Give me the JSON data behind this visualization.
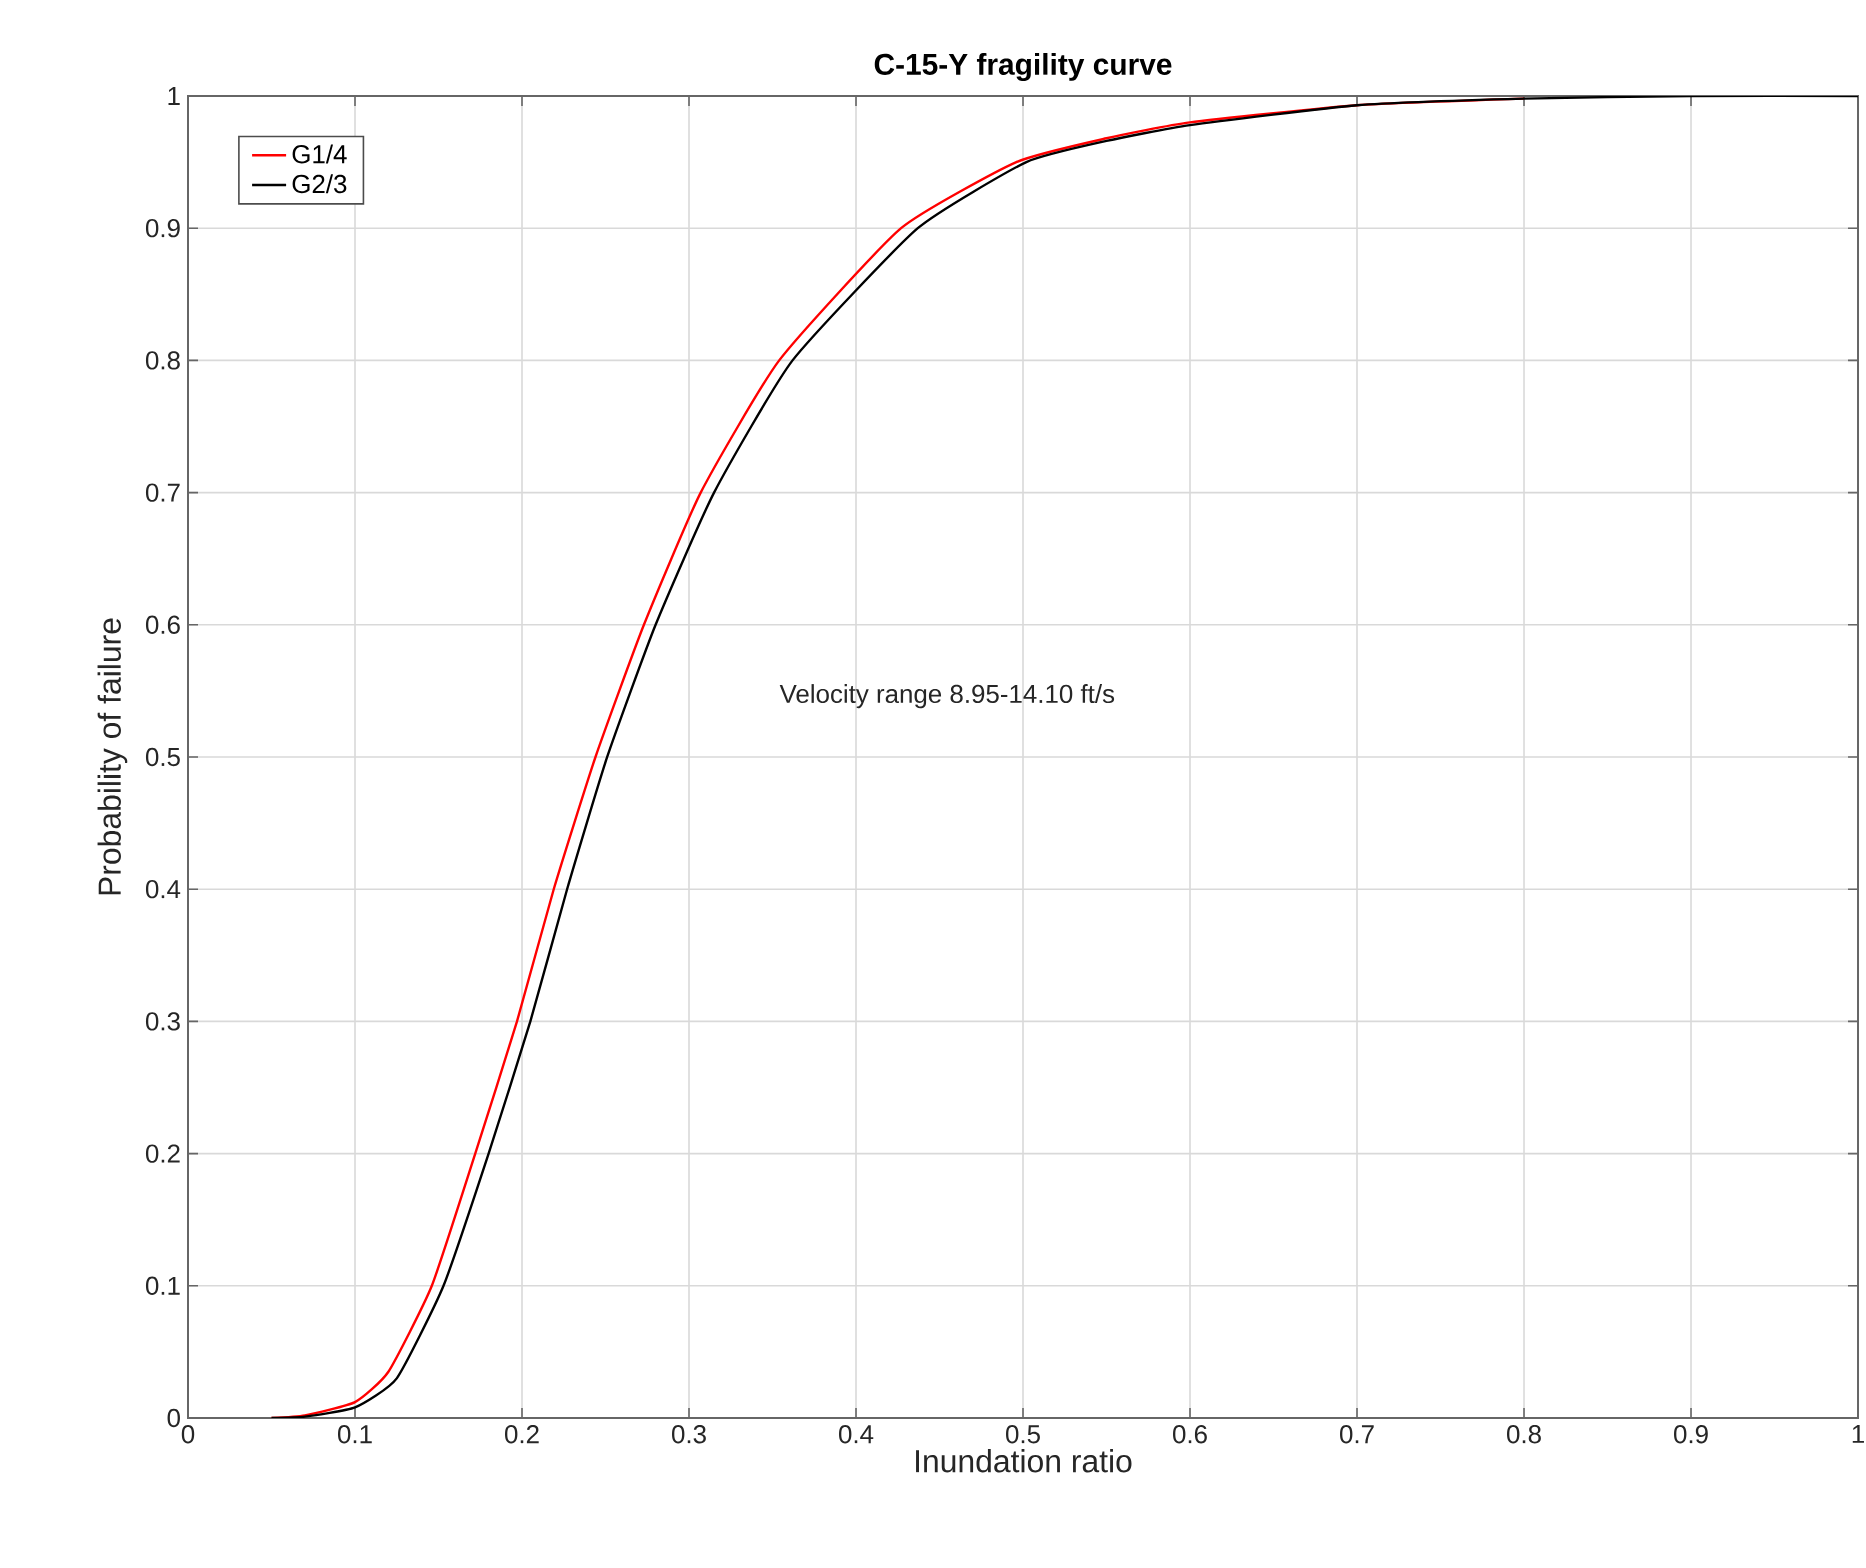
{
  "chart_data": {
    "type": "line",
    "title": "C-15-Y fragility curve",
    "xlabel": "Inundation ratio",
    "ylabel": "Probability of failure",
    "annotations": [
      "Velocity range 8.95-14.10 ft/s"
    ],
    "series": [
      {
        "name": "G1/4",
        "color": "#ff0000",
        "x": [
          0.05,
          0.07,
          0.1,
          0.12,
          0.146,
          0.172,
          0.197,
          0.219,
          0.244,
          0.273,
          0.307,
          0.354,
          0.427,
          0.496,
          0.55,
          0.6,
          0.7,
          0.8
        ],
        "values": [
          0,
          0.002,
          0.012,
          0.035,
          0.1,
          0.2,
          0.3,
          0.4,
          0.5,
          0.6,
          0.7,
          0.8,
          0.9,
          0.95,
          0.968,
          0.98,
          0.993,
          0.998
        ]
      },
      {
        "name": "G2/3",
        "color": "#000000",
        "x": [
          0.05,
          0.07,
          0.1,
          0.125,
          0.153,
          0.18,
          0.205,
          0.227,
          0.251,
          0.28,
          0.315,
          0.362,
          0.437,
          0.502,
          0.55,
          0.6,
          0.7,
          0.8,
          0.9,
          1.0
        ],
        "values": [
          0,
          0.001,
          0.008,
          0.03,
          0.1,
          0.2,
          0.3,
          0.4,
          0.5,
          0.6,
          0.7,
          0.8,
          0.9,
          0.95,
          0.966,
          0.978,
          0.993,
          0.998,
          1,
          1
        ]
      }
    ],
    "xlim": [
      0,
      1
    ],
    "ylim": [
      0,
      1
    ],
    "xticks": [
      0,
      0.1,
      0.2,
      0.3,
      0.4,
      0.5,
      0.6,
      0.7,
      0.8,
      0.9,
      1
    ],
    "yticks": [
      0,
      0.1,
      0.2,
      0.3,
      0.4,
      0.5,
      0.6,
      0.7,
      0.8,
      0.9,
      1
    ],
    "grid": true,
    "legend": "top left",
    "marker": "none",
    "line_style": "solid"
  }
}
